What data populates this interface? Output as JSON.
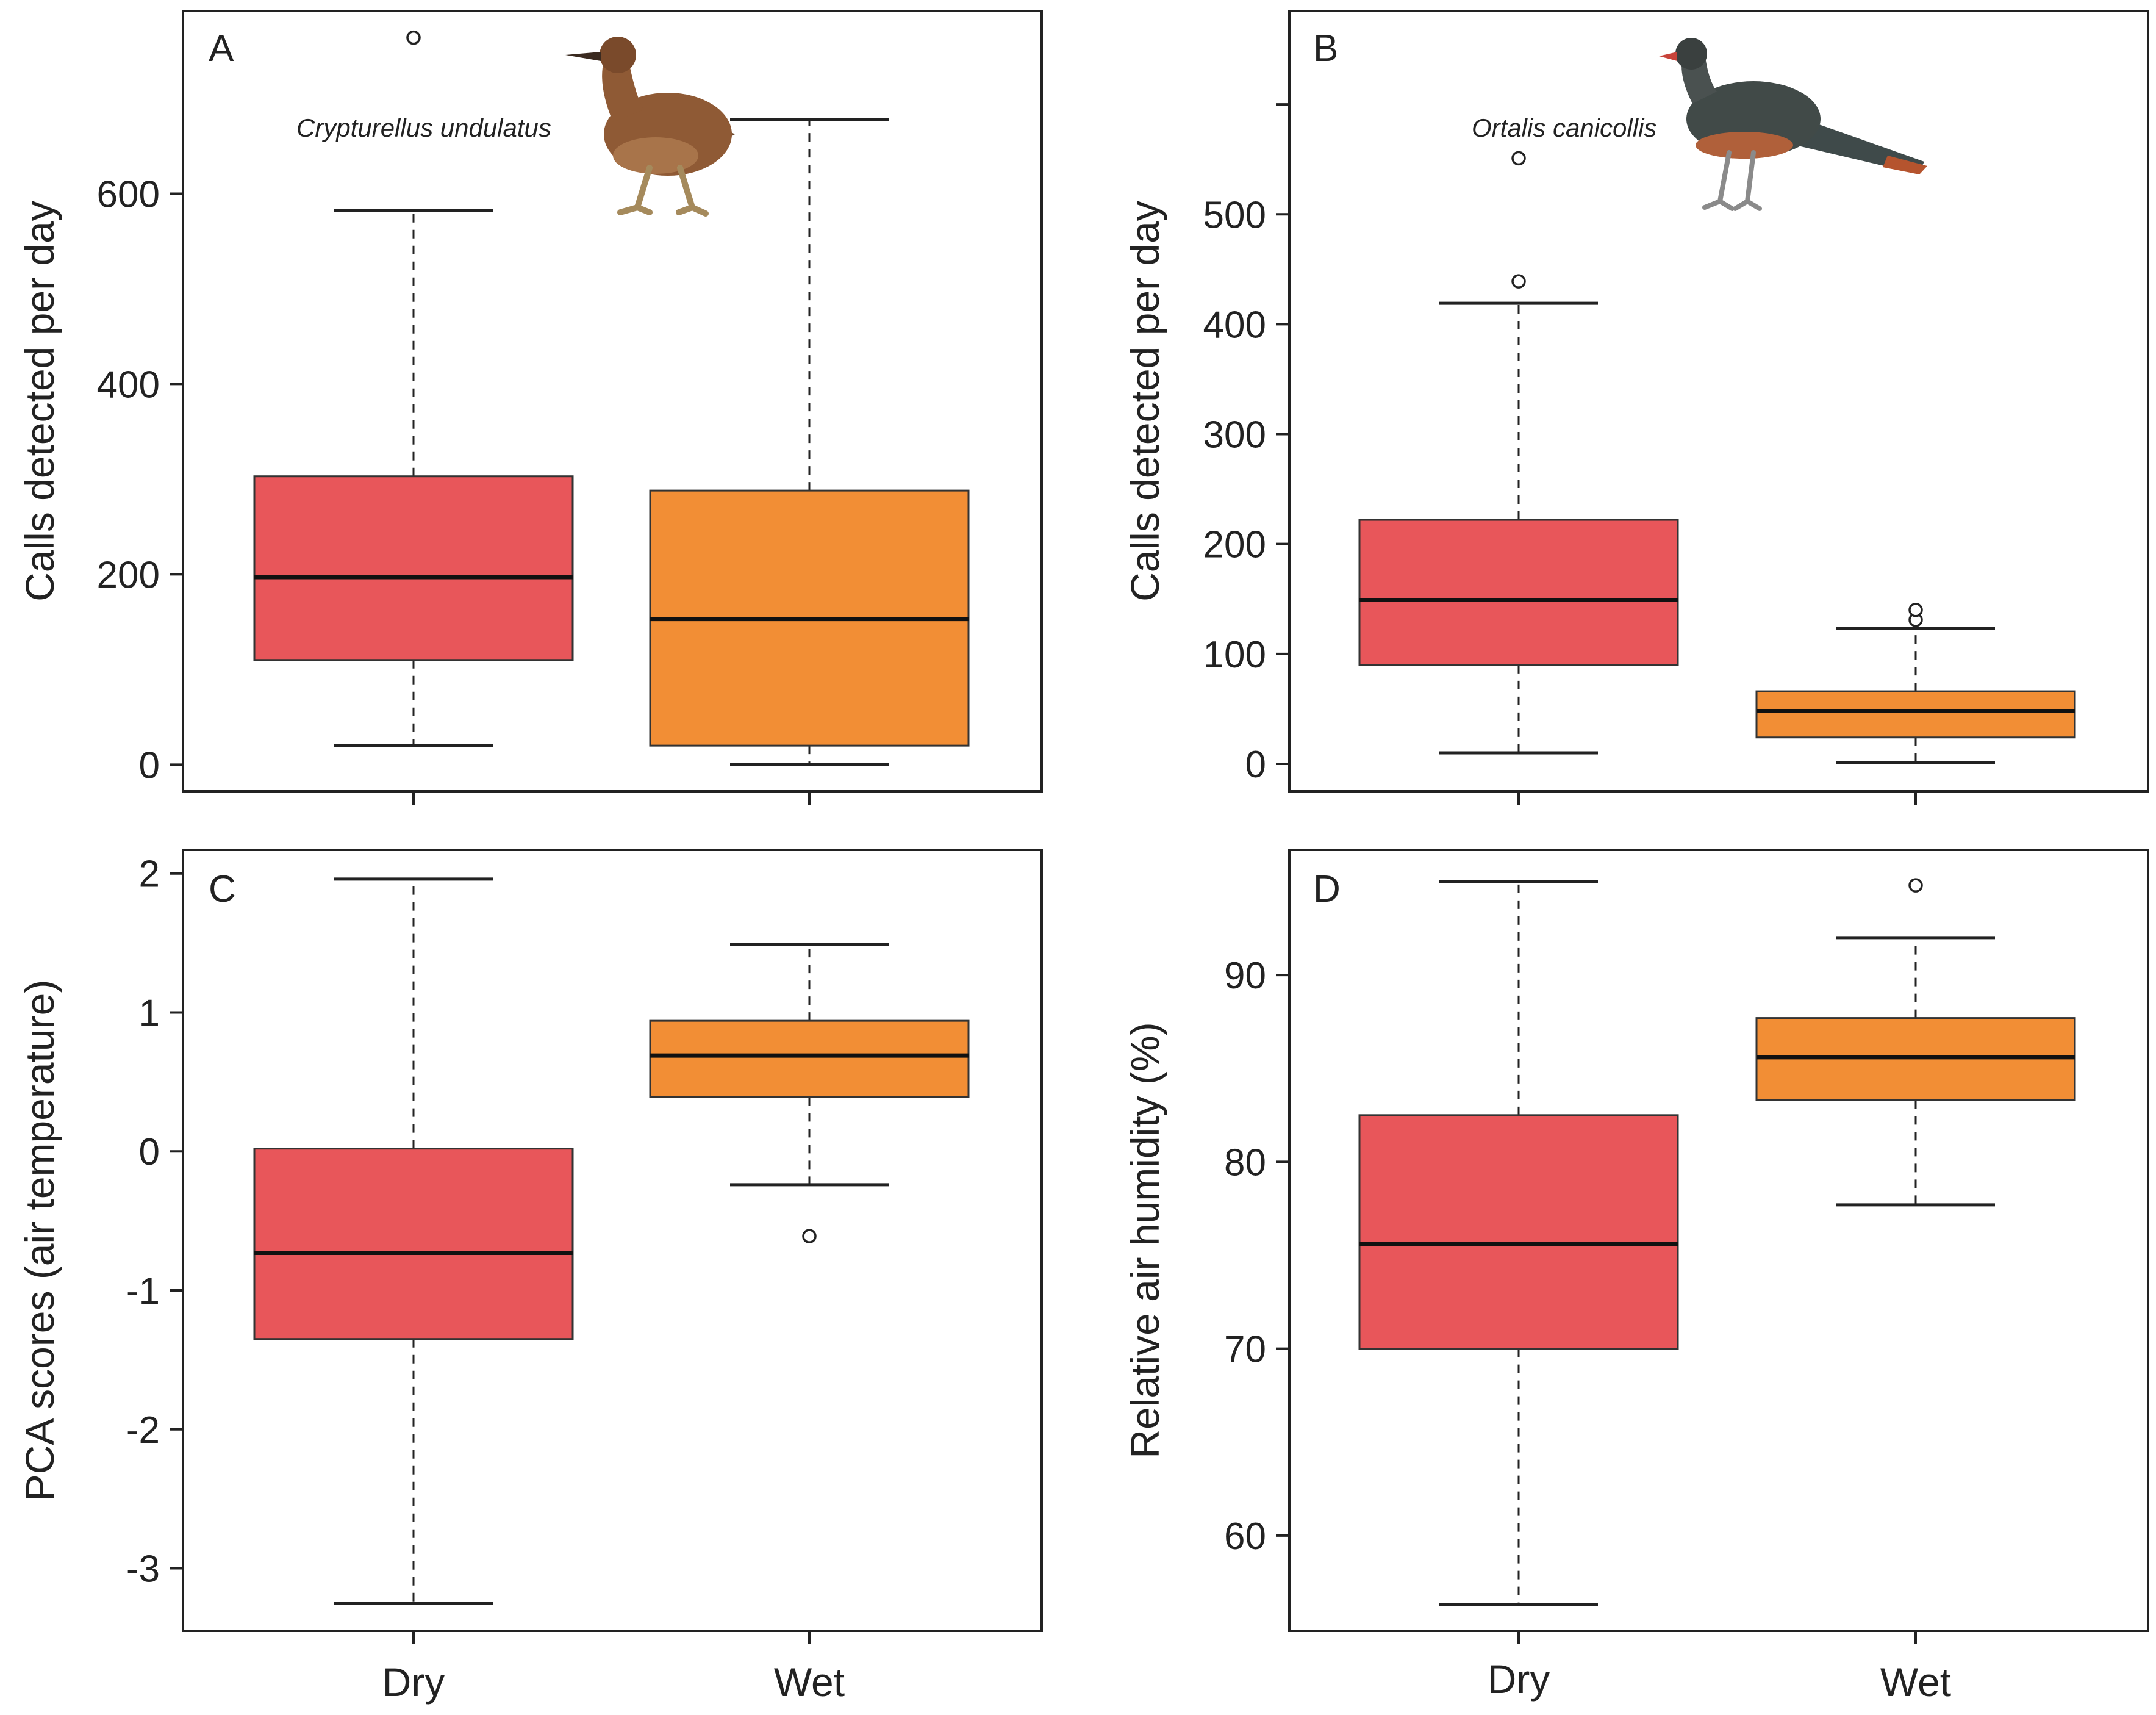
{
  "colors": {
    "dry": "#E8565A",
    "wet": "#F28E35"
  },
  "group_labels": [
    "Dry",
    "Wet"
  ],
  "chart_data": [
    {
      "id": "A",
      "type": "boxplot",
      "panel_label": "A",
      "species": "Crypturellus undulatus",
      "ylabel": "Calls detected per day",
      "ylim": [
        -28,
        792
      ],
      "yticks": [
        0,
        200,
        400,
        600
      ],
      "extra_ticks": [],
      "categories": [
        "Dry",
        "Wet"
      ],
      "boxes": [
        {
          "name": "Dry",
          "whisker_low": 20,
          "q1": 110,
          "median": 197,
          "q3": 303,
          "whisker_high": 582,
          "outliers": [
            764
          ]
        },
        {
          "name": "Wet",
          "whisker_low": 0,
          "q1": 20,
          "median": 153,
          "q3": 288,
          "whisker_high": 678,
          "outliers": []
        }
      ]
    },
    {
      "id": "B",
      "type": "boxplot",
      "panel_label": "B",
      "species": "Ortalis canicollis",
      "ylabel": "Calls detected per day",
      "ylim": [
        -25,
        685
      ],
      "yticks": [
        0,
        100,
        200,
        300,
        400,
        500
      ],
      "extra_ticks": [
        600
      ],
      "categories": [
        "Dry",
        "Wet"
      ],
      "boxes": [
        {
          "name": "Dry",
          "whisker_low": 10,
          "q1": 90,
          "median": 149,
          "q3": 222,
          "whisker_high": 419,
          "outliers": [
            439,
            551
          ]
        },
        {
          "name": "Wet",
          "whisker_low": 1,
          "q1": 24,
          "median": 48,
          "q3": 66,
          "whisker_high": 123,
          "outliers": [
            131,
            140
          ]
        }
      ]
    },
    {
      "id": "C",
      "type": "boxplot",
      "panel_label": "C",
      "species": "",
      "ylabel": "PCA scores (air temperature)",
      "ylim": [
        -3.45,
        2.17
      ],
      "yticks": [
        -3,
        -2,
        -1,
        0,
        1,
        2
      ],
      "extra_ticks": [],
      "categories": [
        "Dry",
        "Wet"
      ],
      "boxes": [
        {
          "name": "Dry",
          "whisker_low": -3.25,
          "q1": -1.35,
          "median": -0.73,
          "q3": 0.02,
          "whisker_high": 1.96,
          "outliers": []
        },
        {
          "name": "Wet",
          "whisker_low": -0.24,
          "q1": 0.39,
          "median": 0.69,
          "q3": 0.94,
          "whisker_high": 1.49,
          "outliers": [
            -0.61
          ]
        }
      ]
    },
    {
      "id": "D",
      "type": "boxplot",
      "panel_label": "D",
      "species": "",
      "ylabel": "Relative air humidity (%)",
      "ylim": [
        54.9,
        96.7
      ],
      "yticks": [
        60,
        70,
        80,
        90
      ],
      "extra_ticks": [],
      "categories": [
        "Dry",
        "Wet"
      ],
      "boxes": [
        {
          "name": "Dry",
          "whisker_low": 56.3,
          "q1": 70.0,
          "median": 75.6,
          "q3": 82.5,
          "whisker_high": 95.0,
          "outliers": []
        },
        {
          "name": "Wet",
          "whisker_low": 77.7,
          "q1": 83.3,
          "median": 85.6,
          "q3": 87.7,
          "whisker_high": 92.0,
          "outliers": [
            94.8
          ]
        }
      ]
    }
  ]
}
